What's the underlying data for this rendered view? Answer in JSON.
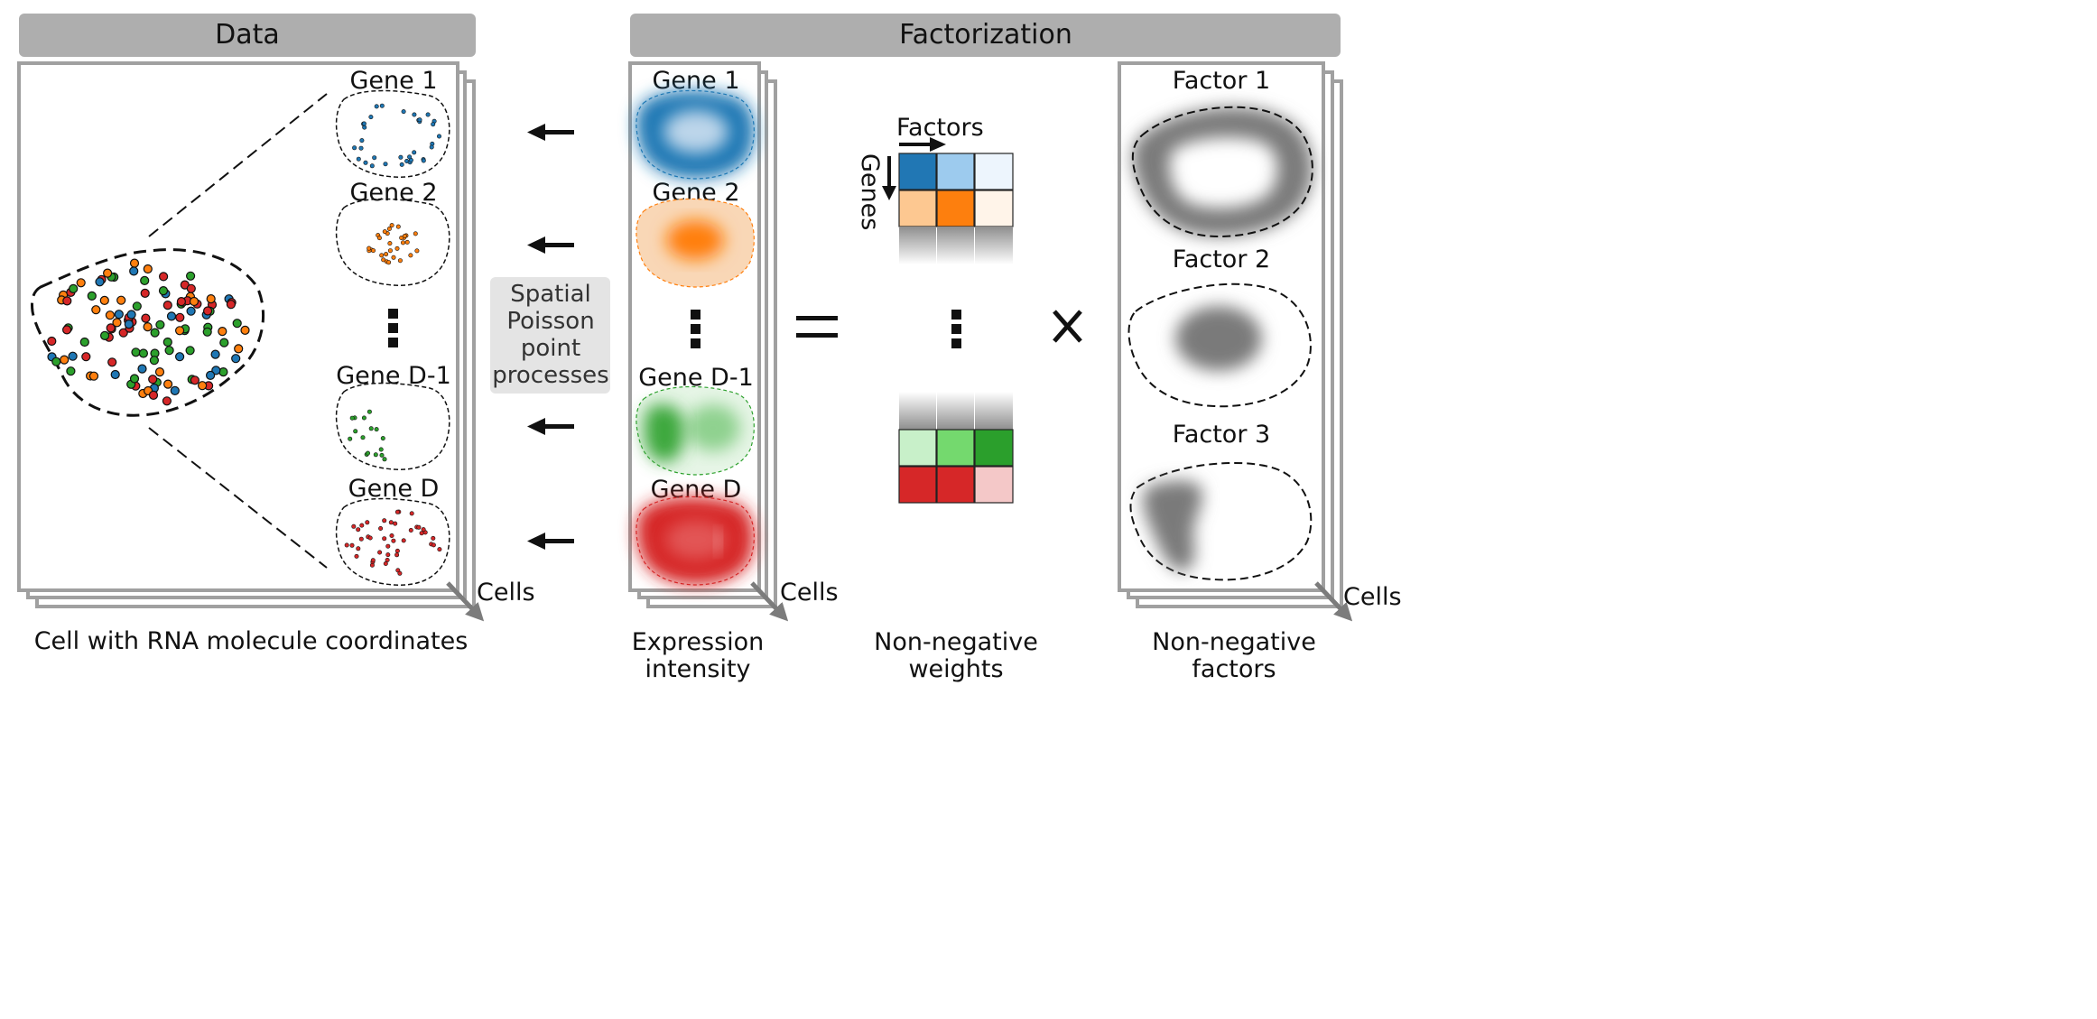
{
  "headers": {
    "data": "Data",
    "factorization": "Factorization"
  },
  "data_panel": {
    "genes": [
      "Gene 1",
      "Gene 2",
      "Gene D-1",
      "Gene D"
    ],
    "cells_label": "Cells",
    "caption": "Cell with RNA molecule coordinates"
  },
  "spatial_box": [
    "Spatial",
    "Poisson",
    "point",
    "processes"
  ],
  "expression_panel": {
    "genes": [
      "Gene 1",
      "Gene 2",
      "Gene D-1",
      "Gene D"
    ],
    "cells_label": "Cells",
    "caption": [
      "Expression",
      "intensity"
    ]
  },
  "weights": {
    "factors_label": "Factors",
    "genes_label": "Genes",
    "caption": [
      "Non-negative",
      "weights"
    ],
    "top_colors": [
      [
        "#2177b4",
        "#9dcbee",
        "#edf5fd"
      ],
      [
        "#fdc891",
        "#fd7f0e",
        "#fff4e9"
      ]
    ],
    "bottom_colors": [
      [
        "#c8f0c9",
        "#74d96e",
        "#2b9f2c"
      ],
      [
        "#d62728",
        "#d62728",
        "#f4c8c8"
      ]
    ]
  },
  "factors_panel": {
    "factors": [
      "Factor 1",
      "Factor 2",
      "Factor 3"
    ],
    "cells_label": "Cells",
    "caption": [
      "Non-negative",
      "factors"
    ]
  },
  "operators": {
    "equals": "=",
    "times": "×"
  },
  "colors": {
    "header_fill": "#aeaeae",
    "frame": "#a0a0a0",
    "gene1": "#1f77b4",
    "gene2": "#ff7f0e",
    "gene_d1": "#2ca02c",
    "gene_d": "#d62728",
    "factor": "#7a7a7a"
  }
}
